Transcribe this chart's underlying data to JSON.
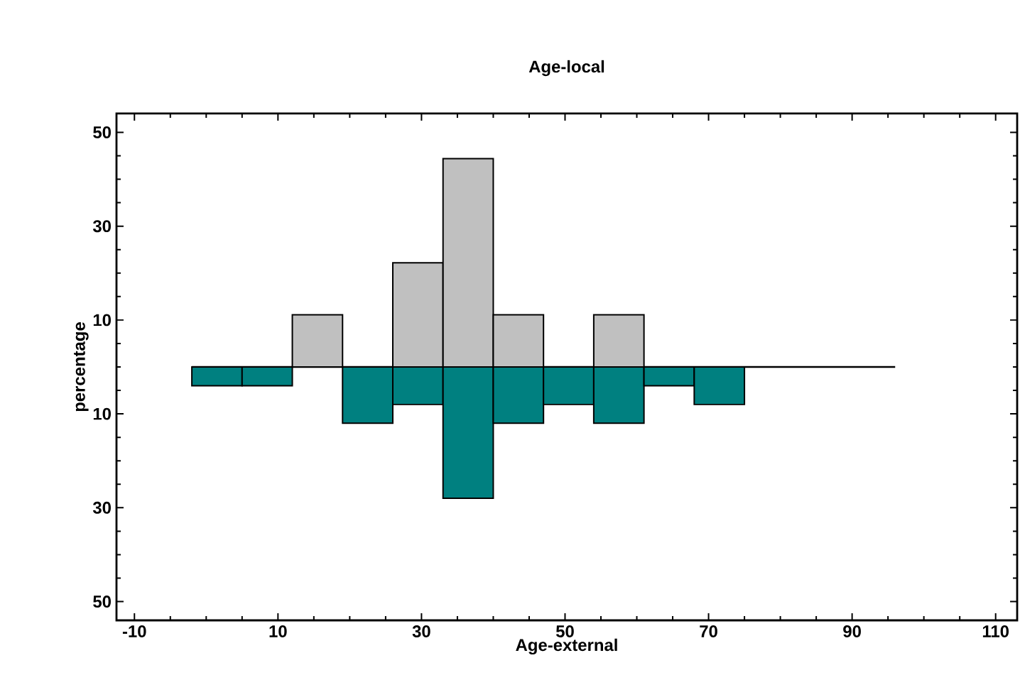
{
  "chart_data": {
    "type": "histogram",
    "title": "Age-local",
    "xlabel": "Age-external",
    "ylabel": "percentage",
    "bins": [
      -2,
      5,
      12,
      19,
      26,
      33,
      40,
      47,
      54,
      61,
      68,
      75,
      82,
      89,
      96
    ],
    "series": [
      {
        "color": "#c0c0c0",
        "values": [
          0,
          0,
          11.1,
          0,
          22.2,
          44.4,
          11.1,
          0,
          11.1,
          0,
          0,
          0,
          0,
          0
        ]
      },
      {
        "color": "#008080",
        "values": [
          -4,
          -4,
          0,
          -12,
          -8,
          -28,
          -12,
          -8,
          -12,
          -4,
          -8,
          0,
          0,
          0
        ]
      }
    ],
    "xlim": [
      -12.5,
      113
    ],
    "xticks": [
      -10,
      10,
      30,
      50,
      70,
      90,
      110
    ],
    "ylim": [
      -54,
      54
    ],
    "yticks": [
      {
        "value": -50,
        "label": "50"
      },
      {
        "value": -30,
        "label": "30"
      },
      {
        "value": -10,
        "label": "10"
      },
      10,
      30,
      50
    ],
    "ref_lines": [
      {
        "axis": "y",
        "value": 0,
        "color": "#000000"
      }
    ],
    "grid": false
  }
}
